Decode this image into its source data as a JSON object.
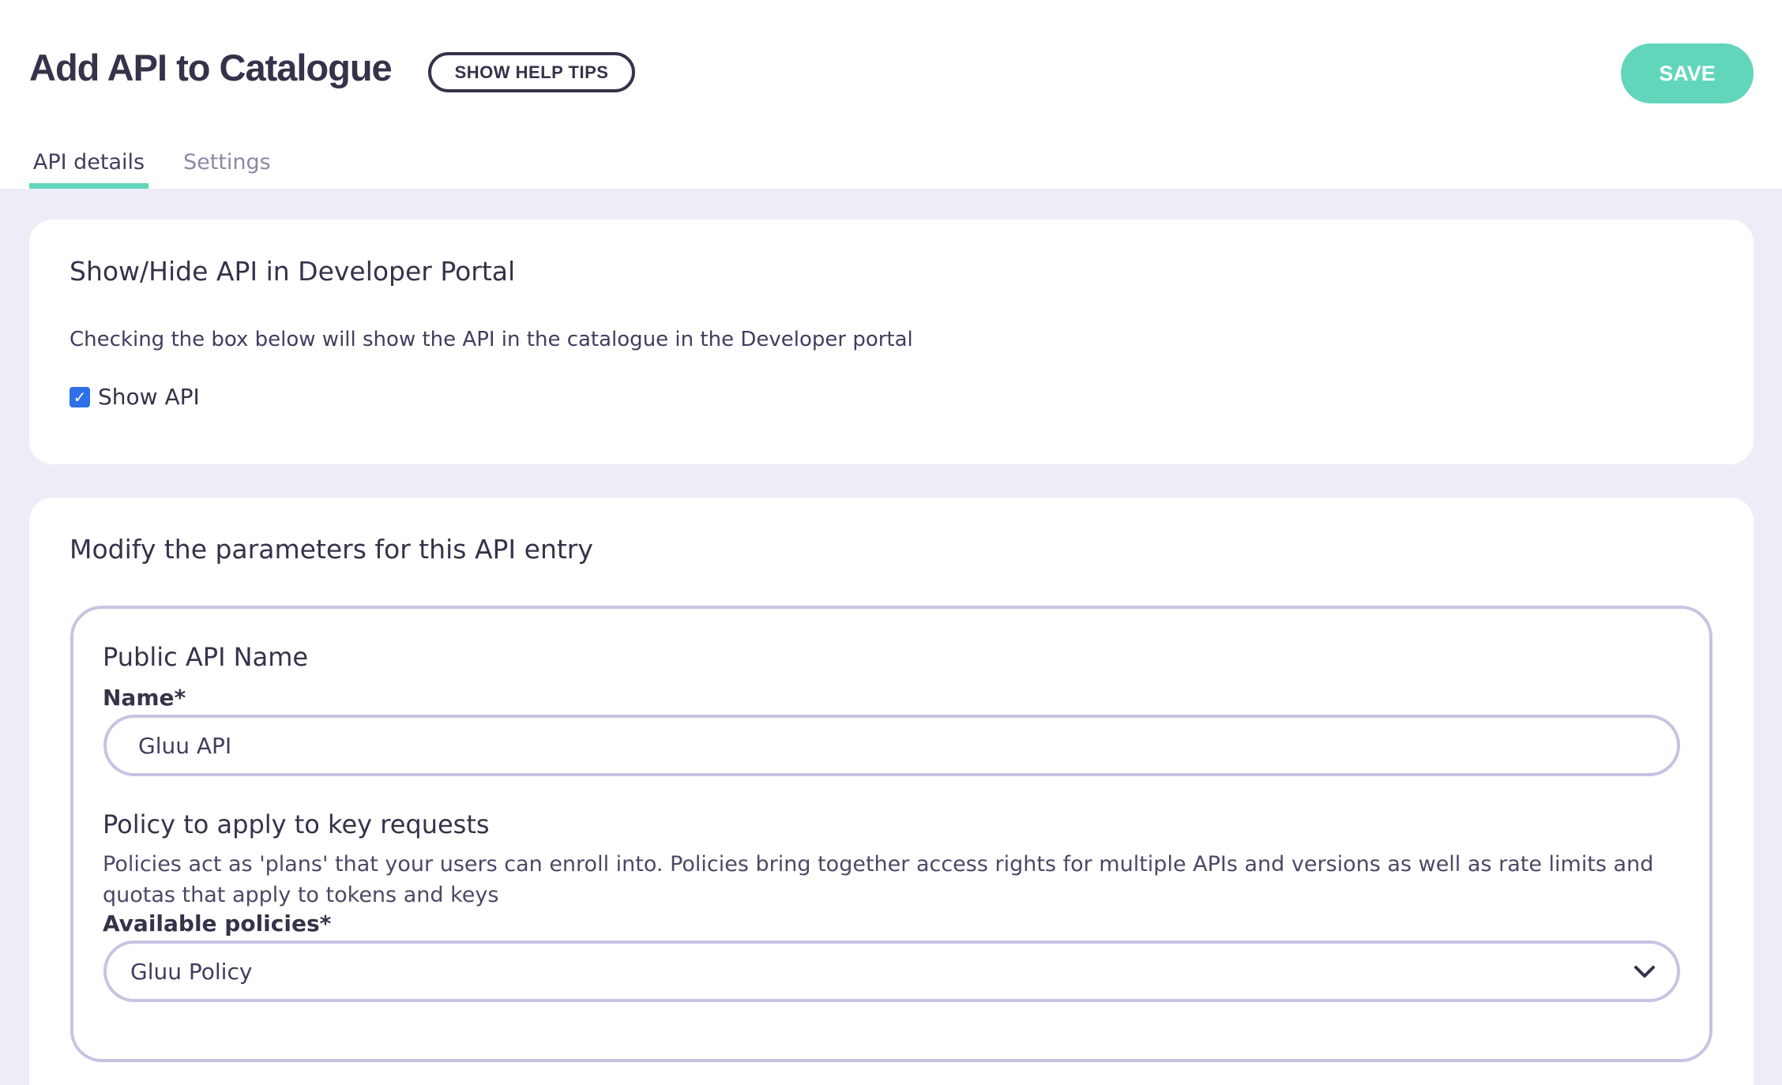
{
  "header": {
    "title": "Add API to Catalogue",
    "help_button": "SHOW HELP TIPS",
    "save_button": "SAVE"
  },
  "tabs": [
    {
      "label": "API details",
      "active": true
    },
    {
      "label": "Settings",
      "active": false
    }
  ],
  "visibility": {
    "heading": "Show/Hide API in Developer Portal",
    "description": "Checking the box below will show the API in the catalogue in the Developer portal",
    "checkbox_label": "Show API",
    "checked": true
  },
  "parameters": {
    "heading": "Modify the parameters for this API entry",
    "public_name": {
      "heading": "Public API Name",
      "label": "Name*",
      "value": "Gluu API"
    },
    "policy": {
      "heading": "Policy to apply to key requests",
      "description": "Policies act as 'plans' that your users can enroll into. Policies bring together access rights for multiple APIs and versions as well as rate limits and quotas that apply to tokens and keys",
      "label": "Available policies*",
      "selected": "Gluu Policy"
    }
  },
  "colors": {
    "accent": "#62d6bb",
    "checkbox": "#2f6fe8",
    "border": "#c5c4e2",
    "background": "#ecedf7"
  }
}
